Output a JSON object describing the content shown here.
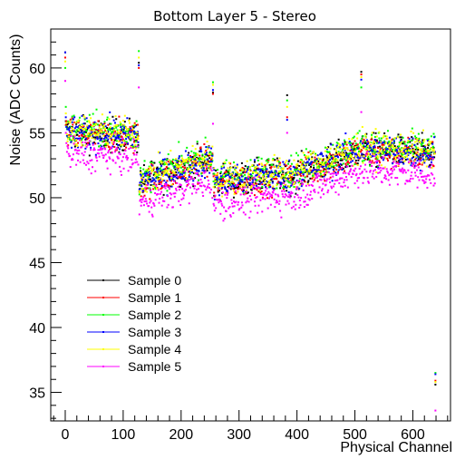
{
  "chart_data": {
    "type": "scatter",
    "title": "Bottom Layer 5 - Stereo",
    "xlabel": "Physical Channel",
    "ylabel": "Noise (ADC Counts)",
    "xlim": [
      -25,
      665
    ],
    "ylim": [
      32.8,
      63
    ],
    "x_major_ticks": [
      0,
      100,
      200,
      300,
      400,
      500,
      600
    ],
    "x_tick_labels": [
      "0",
      "100",
      "200",
      "300",
      "400",
      "500",
      "600"
    ],
    "y_major_ticks": [
      35,
      40,
      45,
      50,
      55,
      60
    ],
    "y_tick_labels": [
      "35",
      "40",
      "45",
      "50",
      "55",
      "60"
    ],
    "grid": false,
    "legend_position": "lower-left",
    "series": [
      {
        "name": "Sample 0",
        "color": "#000000"
      },
      {
        "name": "Sample 1",
        "color": "#ff0000"
      },
      {
        "name": "Sample 2",
        "color": "#00ff00"
      },
      {
        "name": "Sample 3",
        "color": "#0000ff"
      },
      {
        "name": "Sample 4",
        "color": "#ffff00"
      },
      {
        "name": "Sample 5",
        "color": "#ff00ff"
      }
    ],
    "channels": [
      0,
      639
    ],
    "baseline_profile": [
      {
        "channel_range": [
          0,
          127
        ],
        "noise_start": 54.8,
        "noise_end": 54.5
      },
      {
        "channel_range": [
          128,
          255
        ],
        "noise_start": 51.0,
        "noise_end": 52.8
      },
      {
        "channel_range": [
          256,
          383
        ],
        "noise_start": 51.0,
        "noise_end": 51.6
      },
      {
        "channel_range": [
          384,
          511
        ],
        "noise_start": 51.4,
        "noise_end": 53.5
      },
      {
        "channel_range": [
          512,
          639
        ],
        "noise_start": 53.5,
        "noise_end": 53.2
      }
    ],
    "series_offsets": [
      0.2,
      0.1,
      0.5,
      0.2,
      0.4,
      -1.4
    ],
    "point_spread": 0.9,
    "outliers": [
      {
        "x": 0,
        "values": [
          61.2,
          60.8,
          60.0,
          61.2,
          60.5,
          59.0
        ]
      },
      {
        "x": 1,
        "values": [
          55.9,
          55.6,
          57.0,
          56.2,
          56.5,
          55.0
        ]
      },
      {
        "x": 127,
        "values": [
          60.4,
          60.0,
          61.3,
          60.2,
          60.8,
          58.5
        ]
      },
      {
        "x": 255,
        "values": [
          58.1,
          58.0,
          58.9,
          58.3,
          58.7,
          55.7
        ]
      },
      {
        "x": 383,
        "values": [
          57.9,
          56.2,
          57.5,
          56.0,
          57.0,
          55.0
        ]
      },
      {
        "x": 511,
        "values": [
          59.7,
          59.5,
          58.5,
          59.1,
          59.3,
          56.6
        ]
      },
      {
        "x": 639,
        "values": [
          35.6,
          35.9,
          36.5,
          36.4,
          35.8,
          33.6
        ]
      }
    ]
  }
}
